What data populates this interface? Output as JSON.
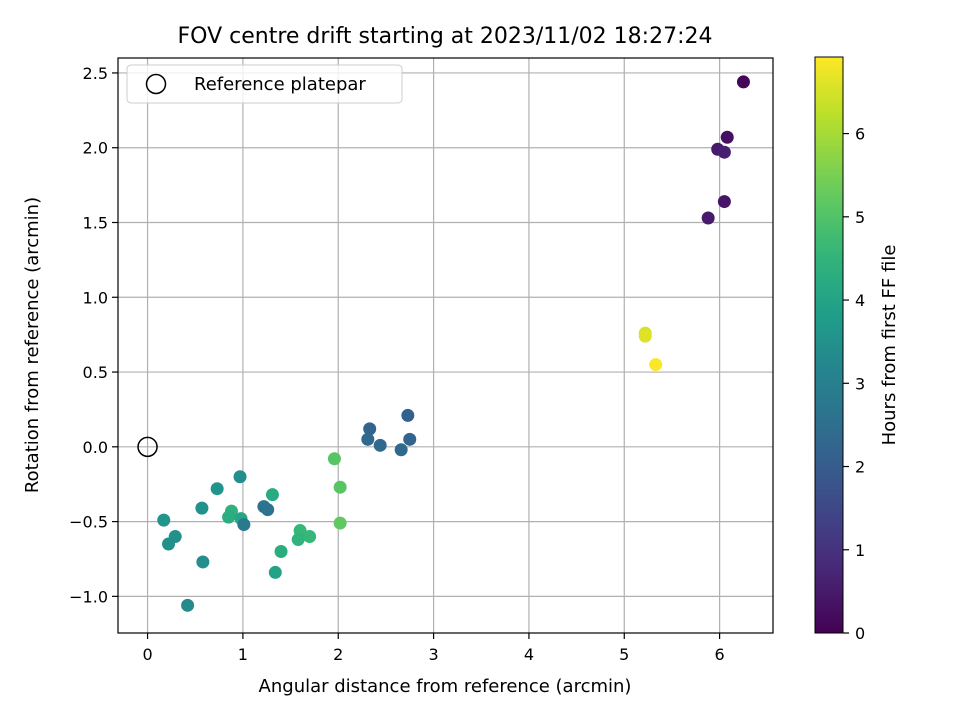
{
  "chart_data": {
    "type": "scatter",
    "title": "FOV centre drift starting at 2023/11/02 18:27:24",
    "xlabel": "Angular distance from reference (arcmin)",
    "ylabel": "Rotation from reference (arcmin)",
    "xlim": [
      -0.31,
      6.56
    ],
    "ylim": [
      -1.245,
      2.6
    ],
    "xticks": [
      0,
      1,
      2,
      3,
      4,
      5,
      6
    ],
    "xtick_labels": [
      "0",
      "1",
      "2",
      "3",
      "4",
      "5",
      "6"
    ],
    "yticks": [
      -1.0,
      -0.5,
      0.0,
      0.5,
      1.0,
      1.5,
      2.0,
      2.5
    ],
    "ytick_labels": [
      "−1.0",
      "−0.5",
      "0.0",
      "0.5",
      "1.0",
      "1.5",
      "2.0",
      "2.5"
    ],
    "grid": true,
    "legend": {
      "placement": "top-left",
      "entries": [
        "Reference platepar"
      ]
    },
    "reference_point": {
      "x": 0.0,
      "y": 0.0
    },
    "colorbar": {
      "label": "Hours from first FF file",
      "colormap": "viridis",
      "range": [
        0,
        6.92
      ],
      "ticks": [
        0,
        1,
        2,
        3,
        4,
        5,
        6
      ],
      "tick_labels": [
        "0",
        "1",
        "2",
        "3",
        "4",
        "5",
        "6"
      ]
    },
    "points": [
      {
        "x": 6.25,
        "y": 2.44,
        "c": 0.1
      },
      {
        "x": 6.08,
        "y": 2.07,
        "c": 0.3
      },
      {
        "x": 5.98,
        "y": 1.99,
        "c": 0.5
      },
      {
        "x": 6.05,
        "y": 1.97,
        "c": 0.6
      },
      {
        "x": 6.05,
        "y": 1.64,
        "c": 0.4
      },
      {
        "x": 5.88,
        "y": 1.53,
        "c": 0.5
      },
      {
        "x": 5.22,
        "y": 0.76,
        "c": 6.5
      },
      {
        "x": 5.22,
        "y": 0.74,
        "c": 6.6
      },
      {
        "x": 5.33,
        "y": 0.55,
        "c": 6.9
      },
      {
        "x": 2.73,
        "y": 0.21,
        "c": 2.1
      },
      {
        "x": 2.33,
        "y": 0.12,
        "c": 2.2
      },
      {
        "x": 2.31,
        "y": 0.05,
        "c": 2.3
      },
      {
        "x": 2.75,
        "y": 0.05,
        "c": 2.2
      },
      {
        "x": 2.44,
        "y": 0.01,
        "c": 2.4
      },
      {
        "x": 2.66,
        "y": -0.02,
        "c": 2.3
      },
      {
        "x": 1.96,
        "y": -0.08,
        "c": 5.1
      },
      {
        "x": 2.02,
        "y": -0.27,
        "c": 5.1
      },
      {
        "x": 2.02,
        "y": -0.51,
        "c": 5.2
      },
      {
        "x": 0.97,
        "y": -0.2,
        "c": 3.4
      },
      {
        "x": 0.73,
        "y": -0.28,
        "c": 3.6
      },
      {
        "x": 1.31,
        "y": -0.32,
        "c": 4.2
      },
      {
        "x": 1.22,
        "y": -0.4,
        "c": 2.7
      },
      {
        "x": 1.26,
        "y": -0.42,
        "c": 2.6
      },
      {
        "x": 0.57,
        "y": -0.41,
        "c": 3.5
      },
      {
        "x": 0.88,
        "y": -0.43,
        "c": 4.4
      },
      {
        "x": 0.85,
        "y": -0.47,
        "c": 4.3
      },
      {
        "x": 0.98,
        "y": -0.48,
        "c": 4.1
      },
      {
        "x": 1.01,
        "y": -0.52,
        "c": 2.8
      },
      {
        "x": 0.17,
        "y": -0.49,
        "c": 3.6
      },
      {
        "x": 1.6,
        "y": -0.56,
        "c": 4.6
      },
      {
        "x": 1.7,
        "y": -0.6,
        "c": 4.6
      },
      {
        "x": 1.58,
        "y": -0.62,
        "c": 4.5
      },
      {
        "x": 0.29,
        "y": -0.6,
        "c": 3.5
      },
      {
        "x": 0.22,
        "y": -0.65,
        "c": 3.5
      },
      {
        "x": 1.4,
        "y": -0.7,
        "c": 4.3
      },
      {
        "x": 0.58,
        "y": -0.77,
        "c": 3.4
      },
      {
        "x": 1.34,
        "y": -0.84,
        "c": 4.0
      },
      {
        "x": 0.42,
        "y": -1.06,
        "c": 3.3
      }
    ]
  }
}
